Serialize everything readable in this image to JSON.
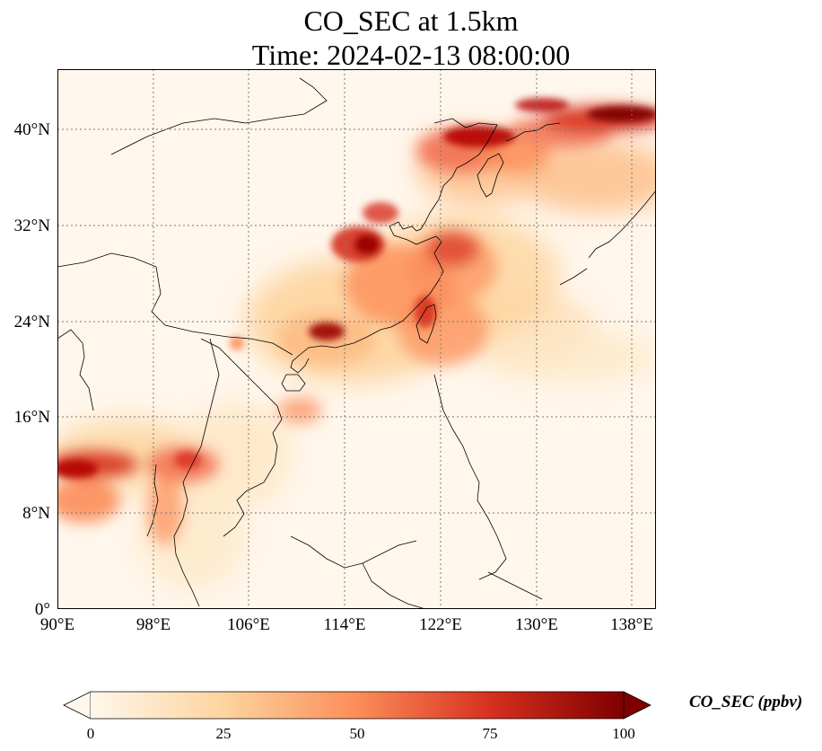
{
  "title_line1": "CO_SEC at 1.5km",
  "title_line2": "Time: 2024-02-13 08:00:00",
  "map": {
    "lon_range": [
      90,
      140
    ],
    "lat_range": [
      0,
      45
    ],
    "grid": "dotted",
    "colormap": "OrRd",
    "x_ticks": [
      "90°E",
      "98°E",
      "106°E",
      "114°E",
      "122°E",
      "130°E",
      "138°E"
    ],
    "y_ticks": [
      "0°",
      "8°N",
      "16°N",
      "24°N",
      "32°N",
      "40°N"
    ]
  },
  "colorbar": {
    "label": "CO_SEC (ppbv)",
    "min": 0,
    "max": 100,
    "ticks": [
      "0",
      "25",
      "50",
      "75",
      "100"
    ],
    "extend": "both",
    "colors": [
      "#fff7ec",
      "#fdd49e",
      "#fc8d59",
      "#d7301f",
      "#7f0000"
    ]
  }
}
